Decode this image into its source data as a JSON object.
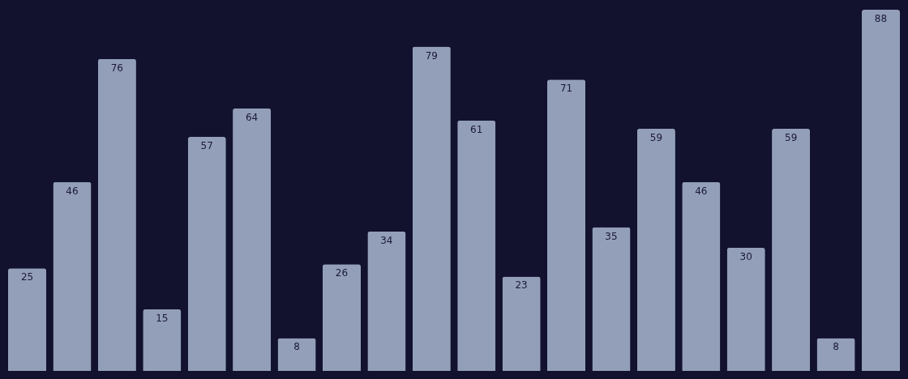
{
  "chart_data": {
    "type": "bar",
    "categories": [
      null,
      null,
      null,
      null,
      null,
      null,
      null,
      null,
      null,
      null,
      null,
      null,
      null,
      null,
      null,
      null,
      null,
      null,
      null,
      null
    ],
    "values": [
      25,
      46,
      76,
      15,
      57,
      64,
      8,
      26,
      34,
      79,
      61,
      23,
      71,
      35,
      59,
      46,
      30,
      59,
      8,
      88
    ],
    "color": "#939fb9",
    "data_labels": true
  }
}
